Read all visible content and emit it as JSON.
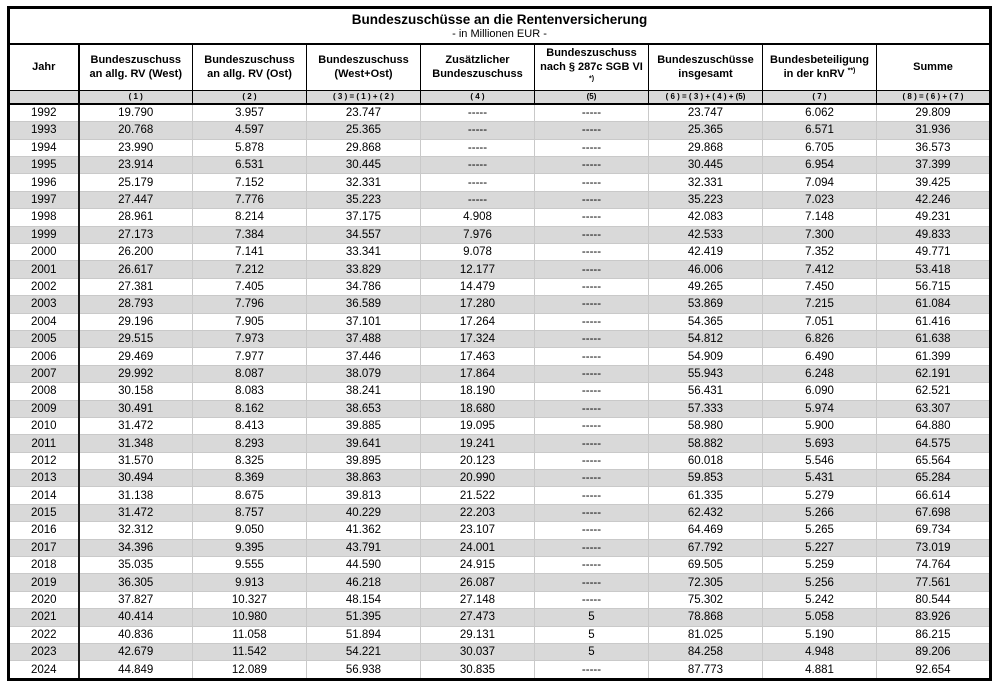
{
  "title": "Bundeszuschüsse an die Rentenversicherung",
  "subtitle": "- in Millionen EUR -",
  "colors": {
    "stripe_gray": "#d9d9d9",
    "border_dark": "#000000",
    "grid_light": "#c9c9c9",
    "text": "#000000"
  },
  "columns": [
    {
      "id": "jahr",
      "line1": "Jahr",
      "line2": "",
      "sup": "",
      "formula": ""
    },
    {
      "id": "bundeszuschuss-west",
      "line1": "Bundeszuschuss",
      "line2": "an allg. RV (West)",
      "sup": "",
      "formula": "( 1 )"
    },
    {
      "id": "bundeszuschuss-ost",
      "line1": "Bundeszuschuss",
      "line2": "an allg. RV (Ost)",
      "sup": "",
      "formula": "( 2 )"
    },
    {
      "id": "bundeszuschuss-west-ost",
      "line1": "Bundeszuschuss",
      "line2": "(West+Ost)",
      "sup": "",
      "formula": "( 3 ) = ( 1 ) + ( 2 )"
    },
    {
      "id": "zusaetzlicher-bundeszuschuss",
      "line1": "Zusätzlicher",
      "line2": "Bundeszuschuss",
      "sup": "",
      "formula": "( 4 )"
    },
    {
      "id": "bundeszuschuss-287c-sgb-vi",
      "line1": "Bundeszuschuss",
      "line2": "nach § 287c SGB VI",
      "sup": "*)",
      "formula": "(5)"
    },
    {
      "id": "bundeszuschuesse-insgesamt",
      "line1": "Bundeszuschüsse",
      "line2": "insgesamt",
      "sup": "",
      "formula": "( 6 ) = ( 3 ) + ( 4 ) + (5)"
    },
    {
      "id": "bundesbeteiligung-knrv",
      "line1": "Bundesbeteiligung",
      "line2": "in der knRV",
      "sup": "**)",
      "formula": "( 7 )"
    },
    {
      "id": "summe",
      "line1": "Summe",
      "line2": "",
      "sup": "",
      "formula": "( 8 ) = ( 6 ) + ( 7 )"
    }
  ],
  "rows": [
    [
      "1992",
      "19.790",
      "3.957",
      "23.747",
      "-----",
      "-----",
      "23.747",
      "6.062",
      "29.809"
    ],
    [
      "1993",
      "20.768",
      "4.597",
      "25.365",
      "-----",
      "-----",
      "25.365",
      "6.571",
      "31.936"
    ],
    [
      "1994",
      "23.990",
      "5.878",
      "29.868",
      "-----",
      "-----",
      "29.868",
      "6.705",
      "36.573"
    ],
    [
      "1995",
      "23.914",
      "6.531",
      "30.445",
      "-----",
      "-----",
      "30.445",
      "6.954",
      "37.399"
    ],
    [
      "1996",
      "25.179",
      "7.152",
      "32.331",
      "-----",
      "-----",
      "32.331",
      "7.094",
      "39.425"
    ],
    [
      "1997",
      "27.447",
      "7.776",
      "35.223",
      "-----",
      "-----",
      "35.223",
      "7.023",
      "42.246"
    ],
    [
      "1998",
      "28.961",
      "8.214",
      "37.175",
      "4.908",
      "-----",
      "42.083",
      "7.148",
      "49.231"
    ],
    [
      "1999",
      "27.173",
      "7.384",
      "34.557",
      "7.976",
      "-----",
      "42.533",
      "7.300",
      "49.833"
    ],
    [
      "2000",
      "26.200",
      "7.141",
      "33.341",
      "9.078",
      "-----",
      "42.419",
      "7.352",
      "49.771"
    ],
    [
      "2001",
      "26.617",
      "7.212",
      "33.829",
      "12.177",
      "-----",
      "46.006",
      "7.412",
      "53.418"
    ],
    [
      "2002",
      "27.381",
      "7.405",
      "34.786",
      "14.479",
      "-----",
      "49.265",
      "7.450",
      "56.715"
    ],
    [
      "2003",
      "28.793",
      "7.796",
      "36.589",
      "17.280",
      "-----",
      "53.869",
      "7.215",
      "61.084"
    ],
    [
      "2004",
      "29.196",
      "7.905",
      "37.101",
      "17.264",
      "-----",
      "54.365",
      "7.051",
      "61.416"
    ],
    [
      "2005",
      "29.515",
      "7.973",
      "37.488",
      "17.324",
      "-----",
      "54.812",
      "6.826",
      "61.638"
    ],
    [
      "2006",
      "29.469",
      "7.977",
      "37.446",
      "17.463",
      "-----",
      "54.909",
      "6.490",
      "61.399"
    ],
    [
      "2007",
      "29.992",
      "8.087",
      "38.079",
      "17.864",
      "-----",
      "55.943",
      "6.248",
      "62.191"
    ],
    [
      "2008",
      "30.158",
      "8.083",
      "38.241",
      "18.190",
      "-----",
      "56.431",
      "6.090",
      "62.521"
    ],
    [
      "2009",
      "30.491",
      "8.162",
      "38.653",
      "18.680",
      "-----",
      "57.333",
      "5.974",
      "63.307"
    ],
    [
      "2010",
      "31.472",
      "8.413",
      "39.885",
      "19.095",
      "-----",
      "58.980",
      "5.900",
      "64.880"
    ],
    [
      "2011",
      "31.348",
      "8.293",
      "39.641",
      "19.241",
      "-----",
      "58.882",
      "5.693",
      "64.575"
    ],
    [
      "2012",
      "31.570",
      "8.325",
      "39.895",
      "20.123",
      "-----",
      "60.018",
      "5.546",
      "65.564"
    ],
    [
      "2013",
      "30.494",
      "8.369",
      "38.863",
      "20.990",
      "-----",
      "59.853",
      "5.431",
      "65.284"
    ],
    [
      "2014",
      "31.138",
      "8.675",
      "39.813",
      "21.522",
      "-----",
      "61.335",
      "5.279",
      "66.614"
    ],
    [
      "2015",
      "31.472",
      "8.757",
      "40.229",
      "22.203",
      "-----",
      "62.432",
      "5.266",
      "67.698"
    ],
    [
      "2016",
      "32.312",
      "9.050",
      "41.362",
      "23.107",
      "-----",
      "64.469",
      "5.265",
      "69.734"
    ],
    [
      "2017",
      "34.396",
      "9.395",
      "43.791",
      "24.001",
      "-----",
      "67.792",
      "5.227",
      "73.019"
    ],
    [
      "2018",
      "35.035",
      "9.555",
      "44.590",
      "24.915",
      "-----",
      "69.505",
      "5.259",
      "74.764"
    ],
    [
      "2019",
      "36.305",
      "9.913",
      "46.218",
      "26.087",
      "-----",
      "72.305",
      "5.256",
      "77.561"
    ],
    [
      "2020",
      "37.827",
      "10.327",
      "48.154",
      "27.148",
      "-----",
      "75.302",
      "5.242",
      "80.544"
    ],
    [
      "2021",
      "40.414",
      "10.980",
      "51.395",
      "27.473",
      "5",
      "78.868",
      "5.058",
      "83.926"
    ],
    [
      "2022",
      "40.836",
      "11.058",
      "51.894",
      "29.131",
      "5",
      "81.025",
      "5.190",
      "86.215"
    ],
    [
      "2023",
      "42.679",
      "11.542",
      "54.221",
      "30.037",
      "5",
      "84.258",
      "4.948",
      "89.206"
    ],
    [
      "2024",
      "44.849",
      "12.089",
      "56.938",
      "30.835",
      "-----",
      "87.773",
      "4.881",
      "92.654"
    ]
  ]
}
